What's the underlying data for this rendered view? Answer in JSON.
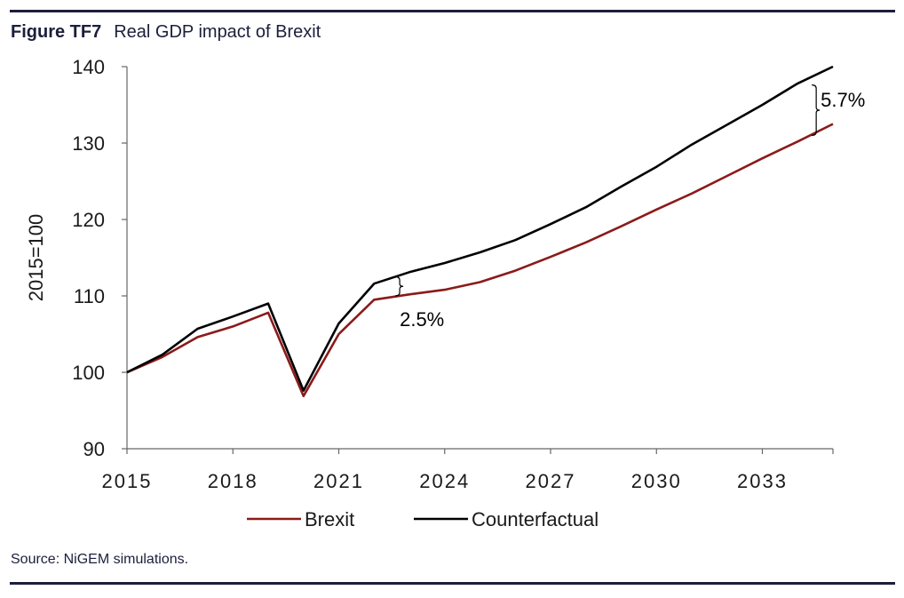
{
  "figure": {
    "label": "Figure TF7",
    "title": "Real GDP impact of Brexit",
    "source": "Source: NiGEM simulations."
  },
  "chart_data": {
    "type": "line",
    "title": "Real GDP impact of Brexit",
    "xlabel": "",
    "ylabel": "2015=100",
    "xlim": [
      2015,
      2035
    ],
    "ylim": [
      90,
      140
    ],
    "x_ticks": [
      2015,
      2018,
      2021,
      2024,
      2027,
      2030,
      2033
    ],
    "y_ticks": [
      90,
      100,
      110,
      120,
      130,
      140
    ],
    "x": [
      2015,
      2016,
      2017,
      2018,
      2019,
      2020,
      2021,
      2022,
      2023,
      2024,
      2025,
      2026,
      2027,
      2028,
      2029,
      2030,
      2031,
      2032,
      2033,
      2034,
      2035
    ],
    "series": [
      {
        "name": "Brexit",
        "color": "#8b1a1a",
        "values": [
          100.0,
          102.0,
          104.6,
          106.0,
          107.8,
          96.9,
          105.0,
          109.5,
          110.2,
          110.8,
          111.8,
          113.3,
          115.1,
          117.0,
          119.1,
          121.3,
          123.4,
          125.7,
          128.0,
          130.2,
          132.5
        ]
      },
      {
        "name": "Counterfactual",
        "color": "#000000",
        "values": [
          100.0,
          102.3,
          105.7,
          107.3,
          109.0,
          97.6,
          106.4,
          111.6,
          113.1,
          114.3,
          115.7,
          117.3,
          119.4,
          121.6,
          124.3,
          126.9,
          129.8,
          132.4,
          135.0,
          137.8,
          140.3
        ]
      }
    ],
    "annotations": [
      {
        "text": "2.5%",
        "x": 2022.6,
        "y_low": 110.0,
        "y_high": 112.5
      },
      {
        "text": "5.7%",
        "x": 2034.4,
        "y_low": 131.0,
        "y_high": 137.6
      }
    ],
    "legend": {
      "placement": "bottom",
      "entries": [
        "Brexit",
        "Counterfactual"
      ]
    },
    "grid": false
  }
}
